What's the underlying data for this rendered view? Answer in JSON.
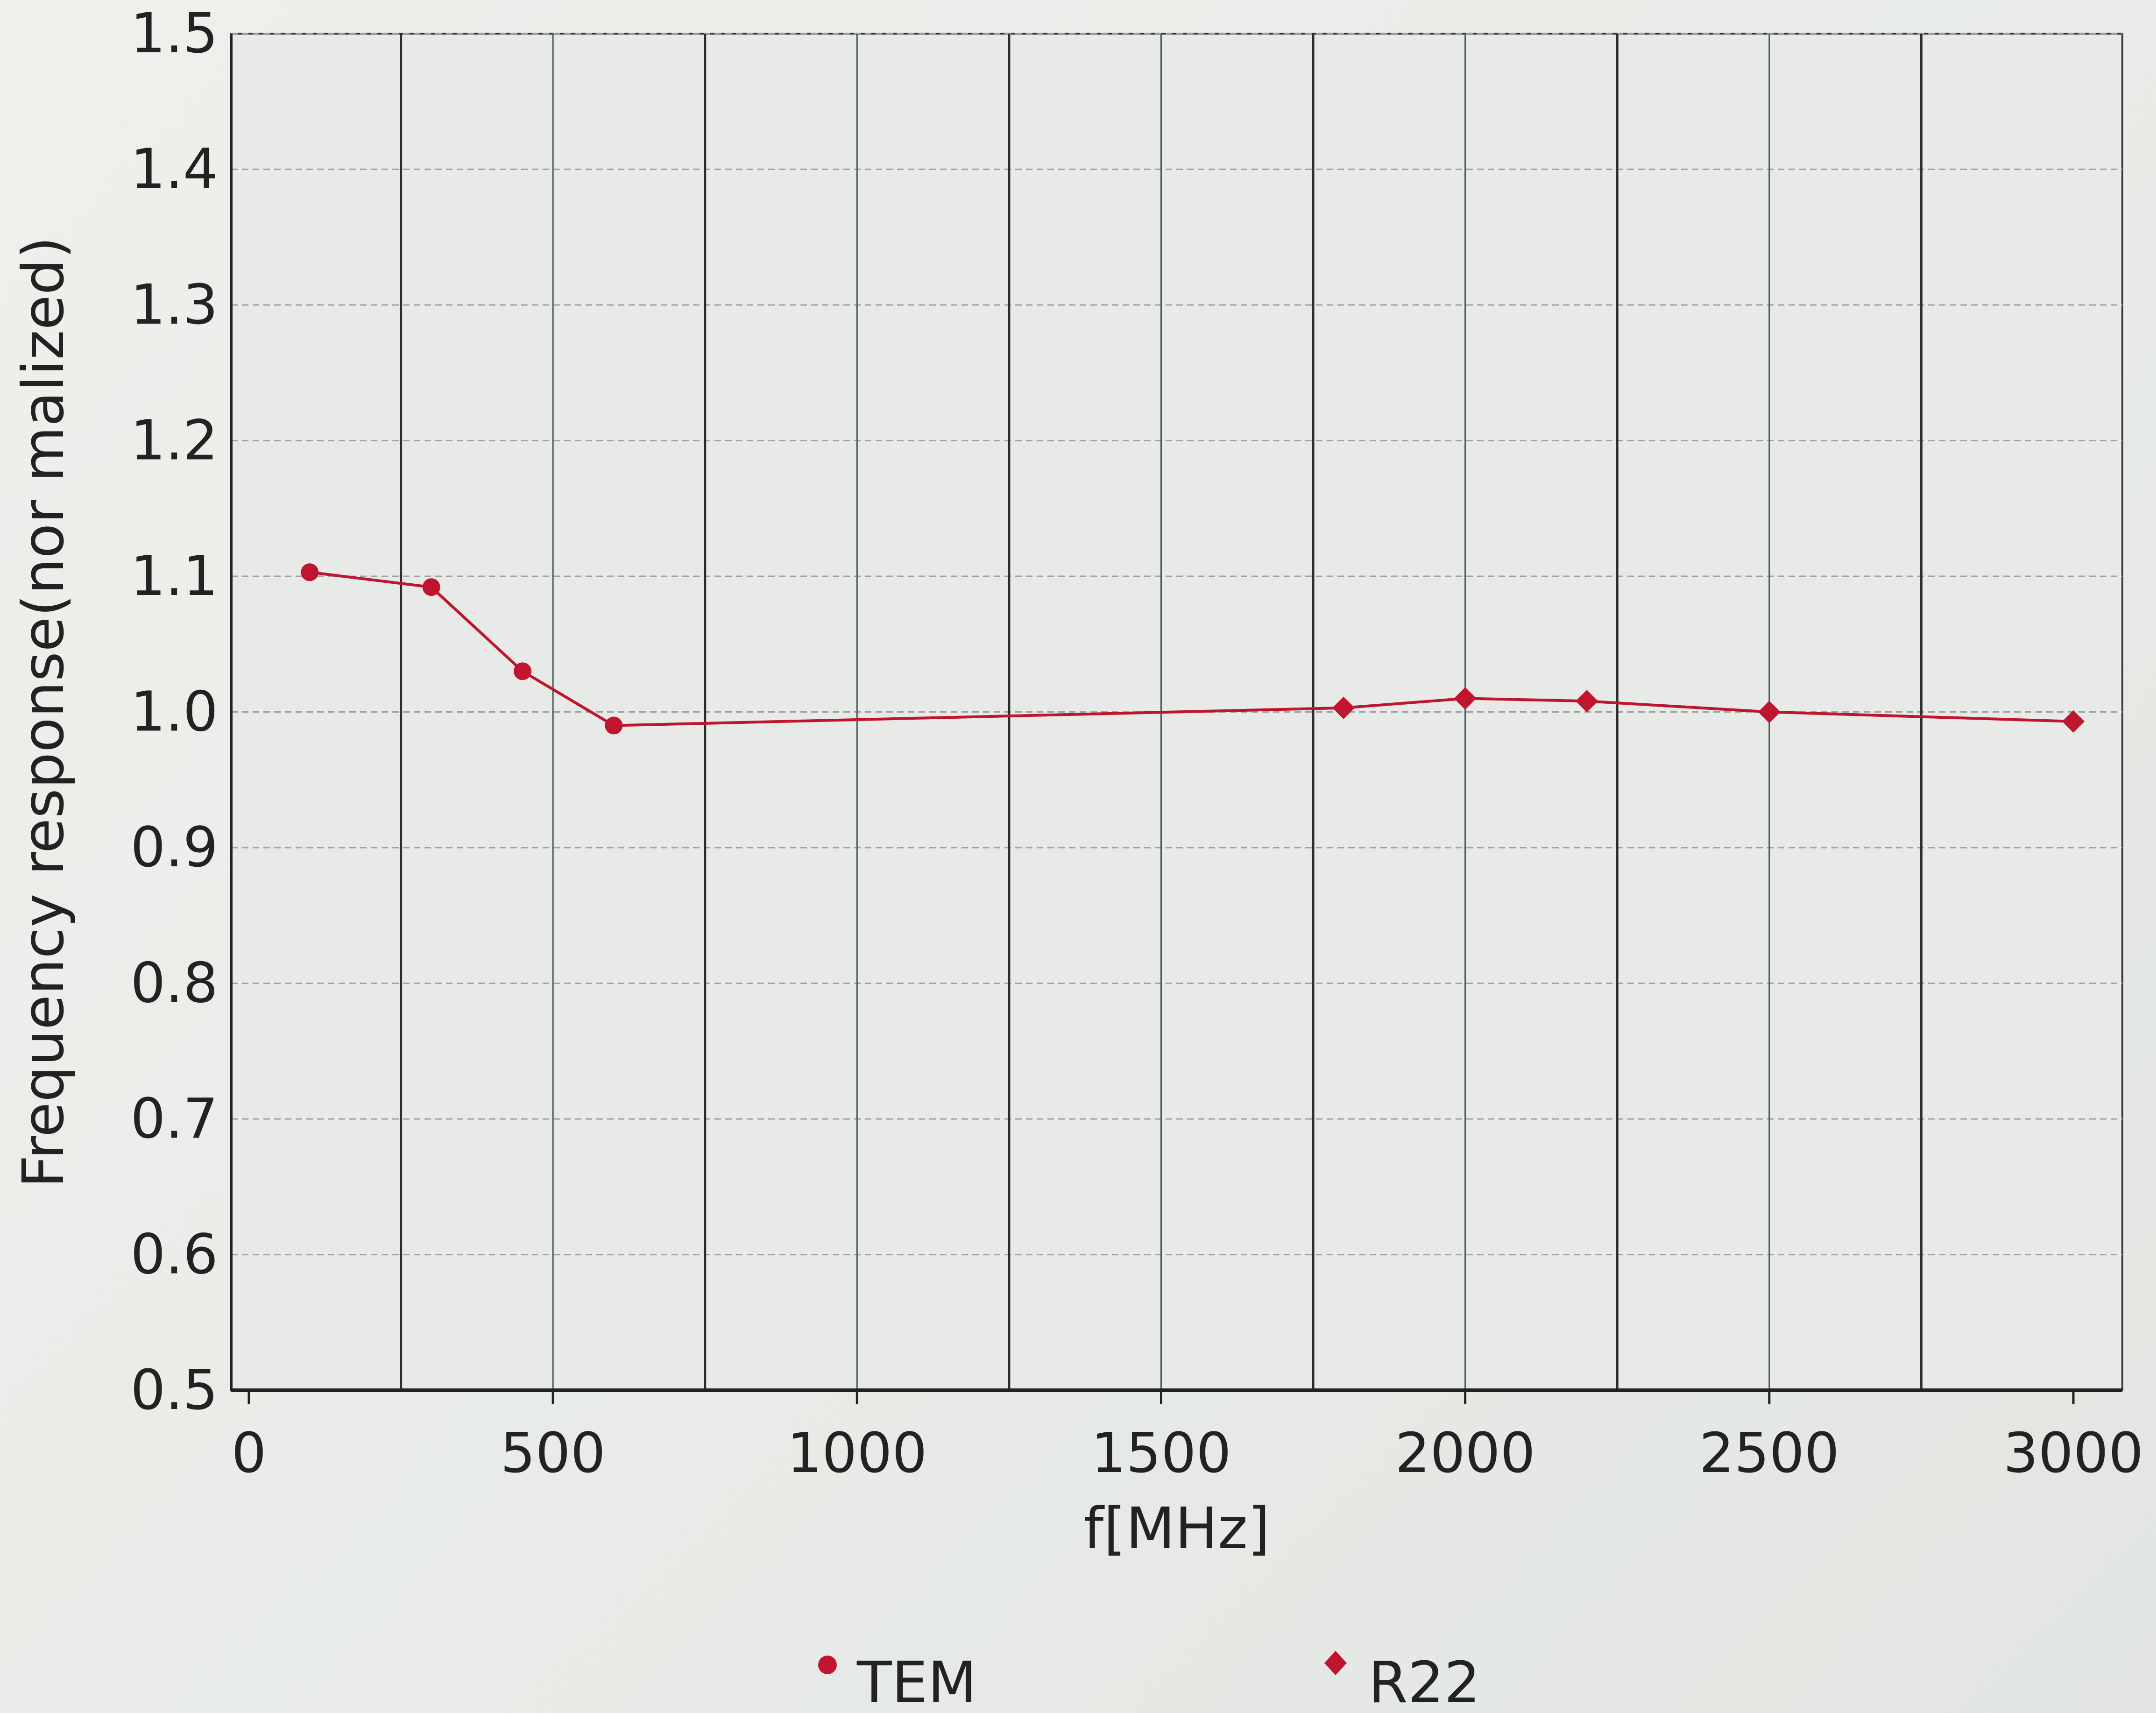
{
  "chart_data": {
    "type": "line",
    "xlabel": "f[MHz]",
    "ylabel": "Frequency response(nor malized)",
    "xlim": [
      0,
      3000
    ],
    "ylim": [
      0.5,
      1.5
    ],
    "x_ticks": [
      "0",
      "500",
      "1000",
      "1500",
      "2000",
      "2500",
      "3000"
    ],
    "y_ticks": [
      "0.5",
      "0.6",
      "0.7",
      "0.8",
      "0.9",
      "1.0",
      "1.1",
      "1.2",
      "1.3",
      "1.4",
      "1.5"
    ],
    "grid": true,
    "legend_position": "bottom",
    "series": [
      {
        "name": "TEM",
        "marker": "circle",
        "color": "#c0152f",
        "x": [
          100,
          300,
          450,
          600
        ],
        "y": [
          1.103,
          1.092,
          1.03,
          0.99
        ]
      },
      {
        "name": "R22",
        "marker": "diamond",
        "color": "#c0152f",
        "x": [
          1800,
          2000,
          2200,
          2500,
          3000
        ],
        "y": [
          1.003,
          1.01,
          1.008,
          1.0,
          0.993
        ]
      }
    ],
    "connector": {
      "from_series": "TEM",
      "to_series": "R22",
      "color": "#c0152f"
    }
  }
}
